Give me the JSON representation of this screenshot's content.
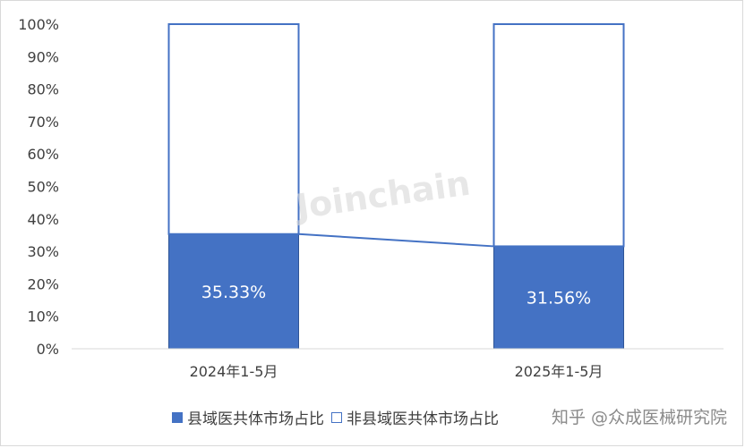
{
  "chart_data": {
    "type": "bar",
    "stacked": true,
    "categories": [
      "2024年1-5月",
      "2025年1-5月"
    ],
    "series": [
      {
        "name": "县域医共体市场占比",
        "values": [
          35.33,
          31.56
        ],
        "color": "#4472c4",
        "style": "filled"
      },
      {
        "name": "非县域医共体市场占比",
        "values": [
          64.67,
          68.44
        ],
        "color": "#4472c4",
        "style": "outline"
      }
    ],
    "data_labels": [
      "35.33%",
      "31.56%"
    ],
    "y_ticks": [
      "0%",
      "10%",
      "20%",
      "30%",
      "40%",
      "50%",
      "60%",
      "70%",
      "80%",
      "90%",
      "100%"
    ],
    "ylim": [
      0,
      100
    ],
    "grid": false,
    "legend_position": "bottom",
    "series_lines": true
  },
  "watermark": "Joinchain",
  "source_text": "知乎 @众成医械研究院"
}
